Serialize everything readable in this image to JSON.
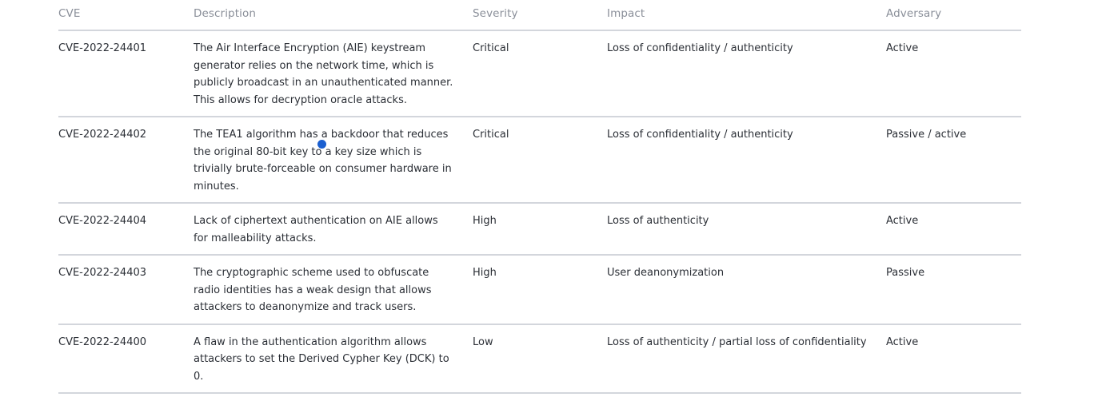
{
  "table": {
    "headers": {
      "cve": "CVE",
      "description": "Description",
      "severity": "Severity",
      "impact": "Impact",
      "adversary": "Adversary"
    },
    "rows": [
      {
        "cve": "CVE-2022-24401",
        "description": "The Air Interface Encryption (AIE) keystream generator relies on the network time, which is publicly broadcast in an unauthenticated manner. This allows for decryption oracle attacks.",
        "severity": "Critical",
        "impact": "Loss of confidentiality / authenticity",
        "adversary": "Active"
      },
      {
        "cve": "CVE-2022-24402",
        "description": "The TEA1 algorithm has a backdoor that reduces the original 80-bit key to a key size which is trivially brute-forceable on consumer hardware in minutes.",
        "severity": "Critical",
        "impact": "Loss of confidentiality / authenticity",
        "adversary": "Passive / active"
      },
      {
        "cve": "CVE-2022-24404",
        "description": "Lack of ciphertext authentication on AIE allows for malleability attacks.",
        "severity": "High",
        "impact": "Loss of authenticity",
        "adversary": "Active"
      },
      {
        "cve": "CVE-2022-24403",
        "description": "The cryptographic scheme used to obfuscate radio identities has a weak design that allows attackers to deanonymize and track users.",
        "severity": "High",
        "impact": "User deanonymization",
        "adversary": "Passive"
      },
      {
        "cve": "CVE-2022-24400",
        "description": "A flaw in the authentication algorithm allows attackers to set the Derived Cypher Key (DCK) to 0.",
        "severity": "Low",
        "impact": "Loss of authenticity / partial loss of confidentiality",
        "adversary": "Active"
      }
    ]
  },
  "colors": {
    "header_text": "#8a8f99",
    "body_text": "#2b2f36",
    "divider": "#d3d6dc",
    "cursor_marker": "#1a5fd0"
  }
}
